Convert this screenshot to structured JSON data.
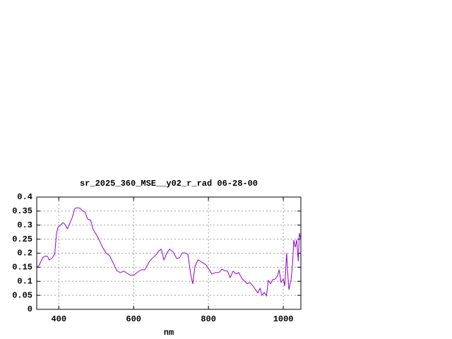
{
  "chart_data": {
    "type": "line",
    "title": "sr_2025_360_MSE__y02_r_rad 06-28-00",
    "x_label": "nm",
    "x": [
      341,
      347,
      357,
      362,
      370,
      374,
      381,
      389,
      394,
      398,
      406,
      411,
      417,
      423,
      428,
      436,
      443,
      451,
      457,
      462,
      470,
      477,
      485,
      492,
      500,
      508,
      517,
      526,
      536,
      545,
      555,
      564,
      574,
      583,
      592,
      602,
      611,
      621,
      630,
      640,
      649,
      658,
      668,
      674,
      681,
      689,
      696,
      706,
      715,
      723,
      730,
      738,
      745,
      753,
      758,
      764,
      772,
      779,
      787,
      794,
      802,
      809,
      819,
      828,
      836,
      843,
      851,
      858,
      866,
      874,
      881,
      889,
      896,
      904,
      911,
      919,
      926,
      932,
      938,
      943,
      949,
      955,
      960,
      966,
      972,
      979,
      985,
      989,
      994,
      1000,
      1004,
      1009,
      1011,
      1015,
      1021,
      1025,
      1028,
      1032,
      1036,
      1040,
      1043,
      1047
    ],
    "series": [
      {
        "name": "sr_2025_360_MSE__y02_r_rad",
        "color": "#9400d3",
        "values": [
          0.151,
          0.156,
          0.184,
          0.189,
          0.189,
          0.176,
          0.181,
          0.196,
          0.272,
          0.292,
          0.302,
          0.309,
          0.302,
          0.287,
          0.302,
          0.327,
          0.36,
          0.362,
          0.36,
          0.352,
          0.347,
          0.322,
          0.317,
          0.284,
          0.267,
          0.247,
          0.221,
          0.201,
          0.191,
          0.166,
          0.138,
          0.131,
          0.136,
          0.128,
          0.121,
          0.123,
          0.133,
          0.141,
          0.141,
          0.166,
          0.181,
          0.191,
          0.209,
          0.214,
          0.176,
          0.201,
          0.214,
          0.204,
          0.181,
          0.184,
          0.201,
          0.201,
          0.196,
          0.121,
          0.091,
          0.153,
          0.176,
          0.171,
          0.164,
          0.158,
          0.141,
          0.126,
          0.131,
          0.131,
          0.143,
          0.138,
          0.136,
          0.113,
          0.136,
          0.126,
          0.131,
          0.111,
          0.101,
          0.091,
          0.096,
          0.083,
          0.07,
          0.058,
          0.075,
          0.05,
          0.06,
          0.048,
          0.103,
          0.091,
          0.106,
          0.108,
          0.121,
          0.141,
          0.096,
          0.108,
          0.083,
          0.201,
          0.146,
          0.07,
          0.108,
          0.166,
          0.247,
          0.221,
          0.247,
          0.171,
          0.272,
          0.247
        ]
      }
    ],
    "xlim": [
      341,
      1047
    ],
    "xticks": [
      400,
      600,
      800,
      1000
    ],
    "ylim": [
      0,
      0.4
    ],
    "yticks": [
      0,
      0.05,
      0.1,
      0.15,
      0.2,
      0.25,
      0.3,
      0.35,
      0.4
    ],
    "grid": true
  }
}
